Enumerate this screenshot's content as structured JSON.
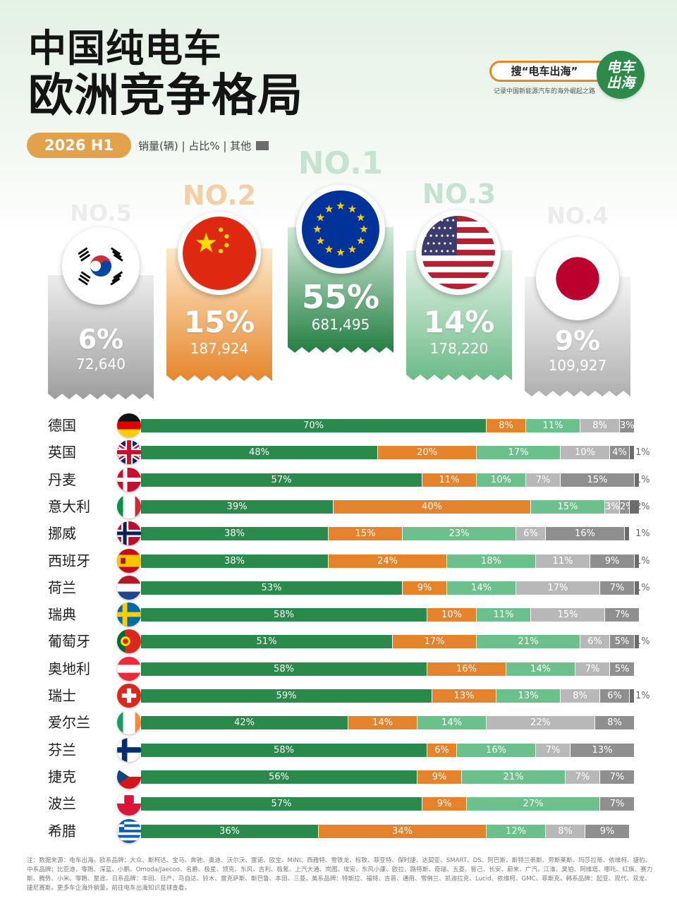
{
  "title_line1": "中国纯电车",
  "title_line2": "欧洲竞争格局",
  "brand": {
    "search_text": "搜“电车出海”",
    "logo_line1": "电车",
    "logo_line2": "出海",
    "tagline": "记录中国新能源汽车的海外崛起之路"
  },
  "period": "2026 H1",
  "legend": {
    "text": "销量(辆) | 占比% | 其他",
    "other_color": "#6c6c6c"
  },
  "colors": {
    "eu": "#2a8a4c",
    "cn": "#e5832c",
    "us": "#6cc08b",
    "jp": "#b8b8b8",
    "kr": "#8f8f8f",
    "other": "#6c6c6c"
  },
  "podium": [
    {
      "rank": "NO.5",
      "flag": "south-korea-flag",
      "pct": "6%",
      "volume": "72,640"
    },
    {
      "rank": "NO.2",
      "flag": "china-flag",
      "pct": "15%",
      "volume": "187,924"
    },
    {
      "rank": "NO.1",
      "flag": "eu-flag",
      "pct": "55%",
      "volume": "681,495"
    },
    {
      "rank": "NO.3",
      "flag": "usa-flag",
      "pct": "14%",
      "volume": "178,220"
    },
    {
      "rank": "NO.4",
      "flag": "japan-flag",
      "pct": "9%",
      "volume": "109,927"
    }
  ],
  "chart_data": {
    "type": "bar",
    "stacked": true,
    "orientation": "horizontal",
    "categories": [
      "德国",
      "英国",
      "丹麦",
      "意大利",
      "挪威",
      "西班牙",
      "荷兰",
      "瑞典",
      "葡萄牙",
      "奥地利",
      "瑞士",
      "爱尔兰",
      "芬兰",
      "捷克",
      "波兰",
      "希腊"
    ],
    "flag_icons": [
      "germany-flag",
      "uk-flag",
      "denmark-flag",
      "italy-flag",
      "norway-flag",
      "spain-flag",
      "netherlands-flag",
      "sweden-flag",
      "portugal-flag",
      "austria-flag",
      "switzerland-flag",
      "ireland-flag",
      "finland-flag",
      "czech-flag",
      "poland-flag",
      "greece-flag"
    ],
    "series": [
      {
        "values": [
          70,
          48,
          57,
          39,
          38,
          38,
          53,
          58,
          51,
          58,
          59,
          42,
          58,
          56,
          57,
          36
        ]
      },
      {
        "values": [
          8,
          20,
          11,
          40,
          15,
          24,
          9,
          10,
          17,
          16,
          13,
          14,
          6,
          9,
          9,
          34
        ]
      },
      {
        "values": [
          11,
          17,
          10,
          15,
          23,
          18,
          14,
          11,
          21,
          14,
          13,
          14,
          16,
          21,
          27,
          12
        ]
      },
      {
        "values": [
          8,
          10,
          7,
          3,
          6,
          11,
          17,
          15,
          6,
          7,
          8,
          22,
          7,
          7,
          0,
          8
        ]
      },
      {
        "values": [
          3,
          4,
          15,
          2,
          16,
          9,
          7,
          7,
          5,
          5,
          6,
          8,
          13,
          7,
          7,
          9
        ]
      },
      {
        "values": [
          0,
          1,
          1,
          2,
          1,
          1,
          1,
          0,
          1,
          0,
          1,
          0,
          0,
          0,
          0,
          0
        ]
      }
    ],
    "labels": [
      [
        "70%",
        "8%",
        "11%",
        "8%",
        "3%",
        ""
      ],
      [
        "48%",
        "20%",
        "17%",
        "10%",
        "4%",
        "1%"
      ],
      [
        "57%",
        "11%",
        "10%",
        "7%",
        "15%",
        "1%"
      ],
      [
        "39%",
        "40%",
        "15%",
        "3%",
        "2%",
        "2%"
      ],
      [
        "38%",
        "15%",
        "23%",
        "6%",
        "16%",
        "1%"
      ],
      [
        "38%",
        "24%",
        "18%",
        "11%",
        "9%",
        "1%"
      ],
      [
        "53%",
        "9%",
        "14%",
        "17%",
        "7%",
        "1%"
      ],
      [
        "58%",
        "10%",
        "11%",
        "15%",
        "7%",
        ""
      ],
      [
        "51%",
        "17%",
        "21%",
        "6%",
        "5%",
        "1%"
      ],
      [
        "58%",
        "16%",
        "14%",
        "7%",
        "5%",
        ""
      ],
      [
        "59%",
        "13%",
        "13%",
        "8%",
        "6%",
        "1%"
      ],
      [
        "42%",
        "14%",
        "14%",
        "22%",
        "8%",
        ""
      ],
      [
        "58%",
        "6%",
        "16%",
        "7%",
        "13%",
        ""
      ],
      [
        "56%",
        "9%",
        "21%",
        "7%",
        "7%",
        ""
      ],
      [
        "57%",
        "9%",
        "27%",
        "",
        "7%",
        ""
      ],
      [
        "36%",
        "34%",
        "12%",
        "8%",
        "9%",
        ""
      ]
    ]
  },
  "footnote": "注：数据来源：电车出海。欧系品牌：大众、斯柯达、宝马、奔驰、奥迪、沃尔沃、雷诺、欧宝、MINI、西雅特、雪铁龙、标致、菲亚特、保时捷、达契亚、SMART、DS、阿巴斯、斯特兰蒂斯、劳斯莱斯、玛莎拉蒂、依维柯、捷豹。中系品牌：比亚迪、零跑、深蓝、小鹏、Omoda/Jaecoo、名爵、极星、领克、东风、吉利、极氪、上汽大通、岚图、埃安、东风小康、欧拉、路特斯、奇瑞、五菱、智己、长安、蔚来、广汽、江淮、昊铂、阿维塔、哪吒、红旗、赛力斯、腾势、小米、零跑、星途。日系品牌：丰田、日产、马自达、铃木、雷克萨斯、斯巴鲁、本田、三菱。美系品牌：特斯拉、福特、吉普、通用、雪佛兰、凯迪拉克、Lucid、依维柯、GMC、菲斯克。韩系品牌：起亚、现代、双龙、捷尼赛斯。更多车企海外销量，前往电车出海知识星球查看。"
}
